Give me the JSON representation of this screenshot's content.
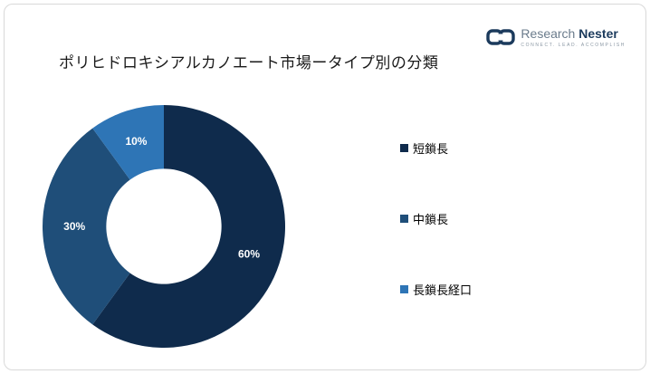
{
  "title": "ポリヒドロキシアルカノエート市場ータイプ別の分類",
  "logo": {
    "brand_research": "Research",
    "brand_nester": "Nester",
    "tagline": "Connect. Lead. Accomplish"
  },
  "chart_data": {
    "type": "pie",
    "subtype": "donut",
    "title": "ポリヒドロキシアルカノエート市場ータイプ別の分類",
    "categories": [
      "短鎖長",
      "中鎖長",
      "長鎖長経口"
    ],
    "values": [
      60,
      30,
      10
    ],
    "labels": [
      "60%",
      "30%",
      "10%"
    ],
    "colors": [
      "#0F2B4C",
      "#1F4E79",
      "#2E75B6"
    ],
    "inner_radius_ratio": 0.475,
    "start_angle_deg": 0,
    "direction": "clockwise",
    "legend_position": "right"
  },
  "legend": {
    "items": [
      {
        "label": "短鎖長",
        "color": "#0F2B4C"
      },
      {
        "label": "中鎖長",
        "color": "#1F4E79"
      },
      {
        "label": "長鎖長経口",
        "color": "#2E75B6"
      }
    ]
  }
}
